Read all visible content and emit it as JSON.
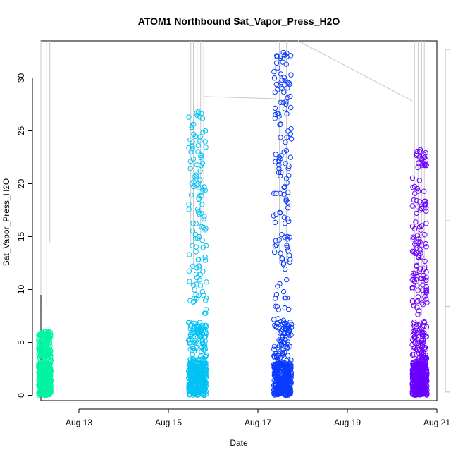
{
  "chart_data": {
    "type": "scatter",
    "title": "ATOM1 Northbound Sat_Vapor_Press_H2O",
    "xlabel": "Date",
    "ylabel": "Sat_Vapor_Press_H2O",
    "x_unit": "days since Aug 12 00:00",
    "xlim": [
      12.15,
      21.0
    ],
    "ylim": [
      -0.5,
      33.5
    ],
    "x_ticks": [
      {
        "value": 13,
        "label": "Aug 13"
      },
      {
        "value": 15,
        "label": "Aug 15"
      },
      {
        "value": 17,
        "label": "Aug 17"
      },
      {
        "value": 19,
        "label": "Aug 19"
      },
      {
        "value": 21,
        "label": "Aug 21"
      }
    ],
    "y_ticks": [
      0,
      5,
      10,
      15,
      20,
      25,
      30
    ],
    "right_axis": {
      "label": "",
      "inverted": true,
      "range": [
        1020,
        180
      ],
      "ticks": [
        200,
        400,
        600,
        800,
        1000
      ],
      "color": "#bdbdbd"
    },
    "grid": false,
    "legend": "none",
    "series": [
      {
        "color": "#00f5a0",
        "x_start": 12.1,
        "x_end": 12.38,
        "y_min": 0.0,
        "y_max": 6.0
      },
      {
        "color": "#00c2f5",
        "x_start": 15.45,
        "x_end": 15.85,
        "y_min": 0.0,
        "y_max": 26.8
      },
      {
        "color": "#0a3bff",
        "x_start": 17.35,
        "x_end": 17.75,
        "y_min": 0.0,
        "y_max": 32.4
      },
      {
        "color": "#6a00ff",
        "x_start": 20.45,
        "x_end": 20.78,
        "y_min": 0.0,
        "y_max": 23.2
      }
    ],
    "pressure_trace": {
      "color": "#c8c8c8",
      "segments": [
        {
          "x": 12.15,
          "y_from": 180,
          "y_to": 773
        },
        {
          "x": 12.22,
          "y_from": 180,
          "y_to": 790
        },
        {
          "x": 12.28,
          "y_from": 180,
          "y_to": 800
        },
        {
          "x": 12.35,
          "y_from": 180,
          "y_to": 650
        },
        {
          "x": 15.5,
          "y_from": 180,
          "y_to": 650
        },
        {
          "x": 15.56,
          "y_from": 180,
          "y_to": 700
        },
        {
          "x": 15.64,
          "y_from": 180,
          "y_to": 720
        },
        {
          "x": 15.72,
          "y_from": 180,
          "y_to": 640
        },
        {
          "x": 15.79,
          "y_from": 180,
          "y_to": 600
        },
        {
          "x": 17.4,
          "y_from": 180,
          "y_to": 640
        },
        {
          "x": 17.48,
          "y_from": 180,
          "y_to": 700
        },
        {
          "x": 17.56,
          "y_from": 180,
          "y_to": 620
        },
        {
          "x": 17.64,
          "y_from": 180,
          "y_to": 700
        },
        {
          "x": 20.5,
          "y_from": 180,
          "y_to": 800
        },
        {
          "x": 20.58,
          "y_from": 180,
          "y_to": 760
        },
        {
          "x": 20.66,
          "y_from": 180,
          "y_to": 820
        },
        {
          "x": 20.72,
          "y_from": 180,
          "y_to": 780
        }
      ],
      "connectors": [
        {
          "x1": 15.79,
          "y1": 310,
          "x2": 17.4,
          "y2": 315
        },
        {
          "x1": 17.9,
          "y1": 180,
          "x2": 20.45,
          "y2": 320
        }
      ]
    }
  }
}
